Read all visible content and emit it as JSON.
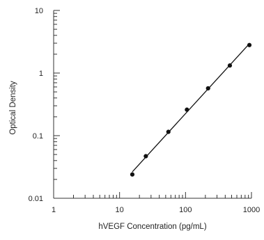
{
  "chart_data": {
    "type": "scatter",
    "title": "",
    "xlabel": "hVEGF Concentration (pg/mL)",
    "ylabel": "Optical Density",
    "x_scale": "log",
    "y_scale": "log",
    "xlim": [
      1,
      1000
    ],
    "ylim": [
      0.01,
      10
    ],
    "x_tick_labels": [
      "1",
      "10",
      "100",
      "1000"
    ],
    "y_tick_labels": [
      "0.01",
      "0.1",
      "1",
      "10"
    ],
    "grid": false,
    "legend": "none",
    "series": [
      {
        "x": [
          15.6,
          25,
          55,
          105,
          220,
          470,
          930
        ],
        "y": [
          0.024,
          0.047,
          0.115,
          0.26,
          0.57,
          1.32,
          2.8
        ]
      }
    ],
    "fit_line": {
      "type": "linear-log-log",
      "x_range": [
        15.6,
        930
      ]
    },
    "colors": {
      "marker": "#111111",
      "line": "#111111",
      "axis": "#333333"
    }
  }
}
